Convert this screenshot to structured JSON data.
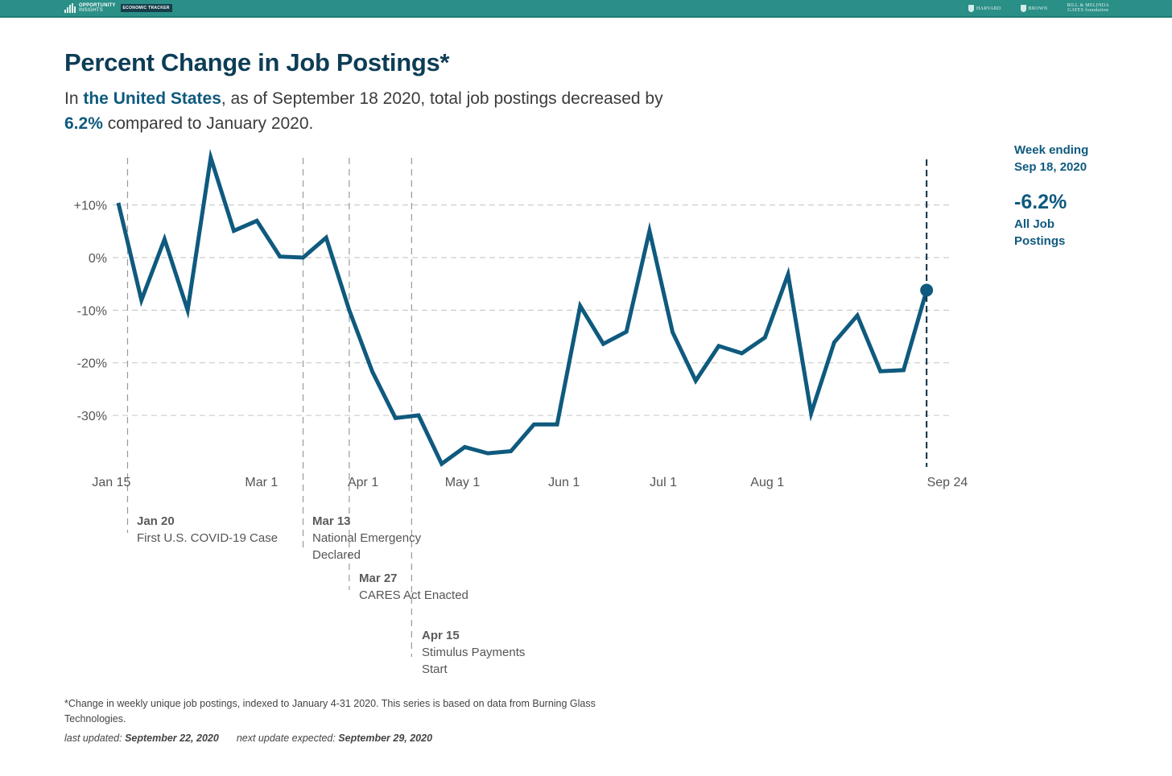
{
  "header": {
    "brand_line1": "OPPORTUNITY",
    "brand_line2": "INSIGHTS",
    "brand_tag": "ECONOMIC TRACKER",
    "partners": [
      {
        "line1": "HARVARD",
        "line2": "UNIVERSITY"
      },
      {
        "line1": "BROWN",
        "line2": ""
      },
      {
        "line1": "BILL & MELINDA",
        "line2": "GATES foundation"
      }
    ]
  },
  "title": "Percent Change in Job Postings*",
  "subtitle": {
    "prefix": "In ",
    "location": "the United States",
    "middle": ", as of September 18 2020, total job postings decreased by",
    "change": "6.2%",
    "suffix": " compared to January 2020."
  },
  "side_panel": {
    "week_line1": "Week ending",
    "week_line2": "Sep 18, 2020",
    "value": "-6.2%",
    "label_line1": "All Job",
    "label_line2": "Postings"
  },
  "colors": {
    "line": "#0f5a7e",
    "title": "#0d3d56",
    "header": "#2a8f87",
    "grid": "#cccccc",
    "event_line": "#999999",
    "current_marker_line": "#0d2c40"
  },
  "events": [
    {
      "date": "Jan 20",
      "line1": "First U.S. COVID-19 Case",
      "line2": ""
    },
    {
      "date": "Mar 13",
      "line1": "National Emergency",
      "line2": "Declared"
    },
    {
      "date": "Mar 27",
      "line1": "CARES Act Enacted",
      "line2": ""
    },
    {
      "date": "Apr 15",
      "line1": "Stimulus Payments",
      "line2": "Start"
    }
  ],
  "footnote": "*Change in weekly unique job postings, indexed to January 4-31 2020. This series is based on data from Burning Glass Technologies.",
  "updated": {
    "last_label": "last updated: ",
    "last_value": "September 22, 2020",
    "next_label": "next update expected: ",
    "next_value": "September 29, 2020"
  },
  "chart_data": {
    "type": "line",
    "title": "Percent Change in Job Postings*",
    "xlabel": "",
    "ylabel": "",
    "ylim": [
      -40,
      20
    ],
    "grid": true,
    "y_ticks": [
      10,
      0,
      -10,
      -20,
      -30
    ],
    "y_tick_labels": [
      "+10%",
      "0%",
      "-10%",
      "-20%",
      "-30%"
    ],
    "x_ticks": [
      {
        "label": "Jan 15",
        "week": -0.3
      },
      {
        "label": "Mar 1",
        "week": 6.2
      },
      {
        "label": "Apr 1",
        "week": 10.6
      },
      {
        "label": "May 1",
        "week": 14.9
      },
      {
        "label": "Jun 1",
        "week": 19.3
      },
      {
        "label": "Jul 1",
        "week": 23.6
      },
      {
        "label": "Aug 1",
        "week": 28.1
      },
      {
        "label": "Sep 24",
        "week": 35.9
      }
    ],
    "event_weeks": [
      0.4,
      8.0,
      10.0,
      12.7
    ],
    "current_week_index": 35,
    "series": [
      {
        "name": "All Job Postings",
        "x": [
          "Jan 17",
          "Jan 24",
          "Jan 31",
          "Feb 7",
          "Feb 14",
          "Feb 21",
          "Feb 28",
          "Mar 6",
          "Mar 13",
          "Mar 20",
          "Mar 27",
          "Apr 3",
          "Apr 10",
          "Apr 17",
          "Apr 24",
          "May 1",
          "May 8",
          "May 15",
          "May 22",
          "May 29",
          "Jun 5",
          "Jun 12",
          "Jun 19",
          "Jun 26",
          "Jul 3",
          "Jul 10",
          "Jul 17",
          "Jul 24",
          "Jul 31",
          "Aug 7",
          "Aug 14",
          "Aug 21",
          "Aug 28",
          "Sep 4",
          "Sep 11",
          "Sep 18"
        ],
        "values": [
          10.4,
          -8.1,
          3.5,
          -10.0,
          19.0,
          5.1,
          7.0,
          0.2,
          0.0,
          3.8,
          -10.0,
          -21.7,
          -30.5,
          -30.0,
          -39.2,
          -36.0,
          -37.2,
          -36.8,
          -31.7,
          -31.7,
          -9.2,
          -16.4,
          -14.1,
          5.1,
          -14.2,
          -23.4,
          -16.8,
          -18.2,
          -15.2,
          -3.2,
          -29.6,
          -16.1,
          -11.0,
          -21.6,
          -21.4,
          -6.2
        ]
      }
    ]
  }
}
